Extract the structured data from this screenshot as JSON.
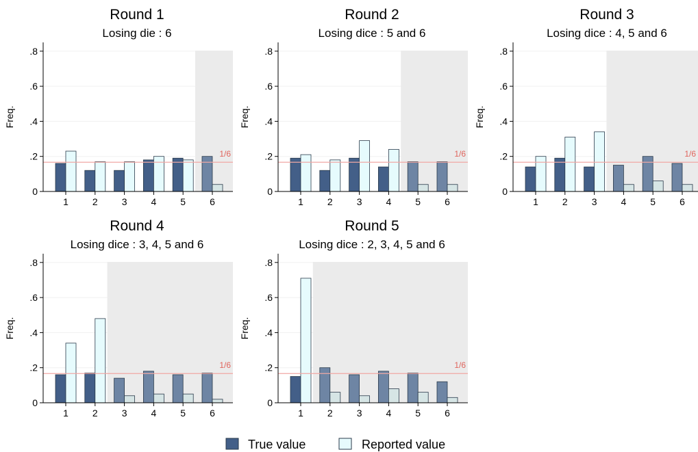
{
  "colors": {
    "true_value": "#435f88",
    "true_value_losing": "#6e85a4",
    "reported_value": "#e6fbfd",
    "reported_value_losing": "#d6e5e5",
    "bar_outline": "#2a3a4a",
    "shade": "#ebebeb",
    "reference_line": "#f0a8a4",
    "grid": "#f0f0f0"
  },
  "legend": {
    "items": [
      {
        "label": "True value",
        "series": "true"
      },
      {
        "label": "Reported value",
        "series": "reported"
      }
    ]
  },
  "chart_data": [
    {
      "type": "bar",
      "title": "Round 1",
      "subtitle": "Losing die : 6",
      "ylabel": "Freq.",
      "ylim": [
        0,
        0.85
      ],
      "yticks": [
        {
          "value": 0,
          "label": "0"
        },
        {
          "value": 0.2,
          "label": ".2"
        },
        {
          "value": 0.4,
          "label": ".4"
        },
        {
          "value": 0.6,
          "label": ".6"
        },
        {
          "value": 0.8,
          "label": ".8"
        }
      ],
      "categories": [
        "1",
        "2",
        "3",
        "4",
        "5",
        "6"
      ],
      "losing_from": 6,
      "reference_line": {
        "value": 0.1667,
        "label": "1/6"
      },
      "series": [
        {
          "name": "True value",
          "key": "true",
          "values": [
            0.16,
            0.12,
            0.12,
            0.18,
            0.19,
            0.2
          ]
        },
        {
          "name": "Reported value",
          "key": "reported",
          "values": [
            0.23,
            0.17,
            0.17,
            0.2,
            0.18,
            0.04
          ]
        }
      ]
    },
    {
      "type": "bar",
      "title": "Round 2",
      "subtitle": "Losing dice : 5 and 6",
      "ylabel": "Freq.",
      "ylim": [
        0,
        0.85
      ],
      "yticks": [
        {
          "value": 0,
          "label": "0"
        },
        {
          "value": 0.2,
          "label": ".2"
        },
        {
          "value": 0.4,
          "label": ".4"
        },
        {
          "value": 0.6,
          "label": ".6"
        },
        {
          "value": 0.8,
          "label": ".8"
        }
      ],
      "categories": [
        "1",
        "2",
        "3",
        "4",
        "5",
        "6"
      ],
      "losing_from": 5,
      "reference_line": {
        "value": 0.1667,
        "label": "1/6"
      },
      "series": [
        {
          "name": "True value",
          "key": "true",
          "values": [
            0.19,
            0.12,
            0.19,
            0.14,
            0.17,
            0.17
          ]
        },
        {
          "name": "Reported value",
          "key": "reported",
          "values": [
            0.21,
            0.18,
            0.29,
            0.24,
            0.04,
            0.04
          ]
        }
      ]
    },
    {
      "type": "bar",
      "title": "Round 3",
      "subtitle": "Losing dice : 4, 5 and 6",
      "ylabel": "Freq.",
      "ylim": [
        0,
        0.85
      ],
      "yticks": [
        {
          "value": 0,
          "label": "0"
        },
        {
          "value": 0.2,
          "label": ".2"
        },
        {
          "value": 0.4,
          "label": ".4"
        },
        {
          "value": 0.6,
          "label": ".6"
        },
        {
          "value": 0.8,
          "label": ".8"
        }
      ],
      "categories": [
        "1",
        "2",
        "3",
        "4",
        "5",
        "6"
      ],
      "losing_from": 4,
      "reference_line": {
        "value": 0.1667,
        "label": "1/6"
      },
      "series": [
        {
          "name": "True value",
          "key": "true",
          "values": [
            0.14,
            0.19,
            0.14,
            0.15,
            0.2,
            0.16
          ]
        },
        {
          "name": "Reported value",
          "key": "reported",
          "values": [
            0.2,
            0.31,
            0.34,
            0.04,
            0.06,
            0.04
          ]
        }
      ]
    },
    {
      "type": "bar",
      "title": "Round 4",
      "subtitle": "Losing dice : 3, 4, 5 and 6",
      "ylabel": "Freq.",
      "ylim": [
        0,
        0.85
      ],
      "yticks": [
        {
          "value": 0,
          "label": "0"
        },
        {
          "value": 0.2,
          "label": ".2"
        },
        {
          "value": 0.4,
          "label": ".4"
        },
        {
          "value": 0.6,
          "label": ".6"
        },
        {
          "value": 0.8,
          "label": ".8"
        }
      ],
      "categories": [
        "1",
        "2",
        "3",
        "4",
        "5",
        "6"
      ],
      "losing_from": 3,
      "reference_line": {
        "value": 0.1667,
        "label": "1/6"
      },
      "series": [
        {
          "name": "True value",
          "key": "true",
          "values": [
            0.16,
            0.17,
            0.14,
            0.18,
            0.16,
            0.17
          ]
        },
        {
          "name": "Reported value",
          "key": "reported",
          "values": [
            0.34,
            0.48,
            0.04,
            0.05,
            0.05,
            0.02
          ]
        }
      ]
    },
    {
      "type": "bar",
      "title": "Round 5",
      "subtitle": "Losing dice : 2, 3, 4, 5 and 6",
      "ylabel": "Freq.",
      "ylim": [
        0,
        0.85
      ],
      "yticks": [
        {
          "value": 0,
          "label": "0"
        },
        {
          "value": 0.2,
          "label": ".2"
        },
        {
          "value": 0.4,
          "label": ".4"
        },
        {
          "value": 0.6,
          "label": ".6"
        },
        {
          "value": 0.8,
          "label": ".8"
        }
      ],
      "categories": [
        "1",
        "2",
        "3",
        "4",
        "5",
        "6"
      ],
      "losing_from": 2,
      "reference_line": {
        "value": 0.1667,
        "label": "1/6"
      },
      "series": [
        {
          "name": "True value",
          "key": "true",
          "values": [
            0.15,
            0.2,
            0.16,
            0.18,
            0.17,
            0.12
          ]
        },
        {
          "name": "Reported value",
          "key": "reported",
          "values": [
            0.71,
            0.06,
            0.04,
            0.08,
            0.06,
            0.03
          ]
        }
      ]
    }
  ]
}
